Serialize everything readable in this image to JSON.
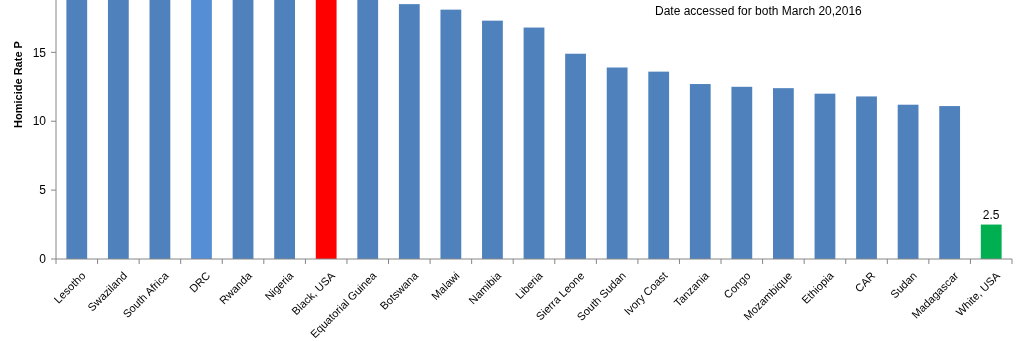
{
  "chart_data": {
    "type": "bar",
    "ylabel": "Homicide Rate P",
    "annotations": [
      "Date accessed for both March 20,2016"
    ],
    "categories": [
      "Lesotho",
      "Swaziland",
      "South Africa",
      "DRC",
      "Rwanda",
      "Nigeria",
      "Black, USA",
      "Equatorial Guinea",
      "Botswana",
      "Malawi",
      "Namibia",
      "Liberia",
      "Sierra Leone",
      "South Sudan",
      "Ivory Coast",
      "Tanzania",
      "Congo",
      "Mozambique",
      "Ethiopia",
      "CAR",
      "Sudan",
      "Madagascar",
      "White, USA"
    ],
    "values": [
      18.8,
      18.8,
      18.8,
      18.8,
      18.8,
      18.8,
      18.8,
      18.8,
      18.5,
      18.1,
      17.3,
      16.8,
      14.9,
      13.9,
      13.6,
      12.7,
      12.5,
      12.4,
      12.0,
      11.8,
      11.2,
      11.1,
      2.5
    ],
    "colors": [
      "#4f81bd",
      "#4f81bd",
      "#4f81bd",
      "#558ed5",
      "#4f81bd",
      "#4f81bd",
      "#ff0000",
      "#4f81bd",
      "#4f81bd",
      "#4f81bd",
      "#4f81bd",
      "#4f81bd",
      "#4f81bd",
      "#4f81bd",
      "#4f81bd",
      "#4f81bd",
      "#4f81bd",
      "#4f81bd",
      "#4f81bd",
      "#4f81bd",
      "#4f81bd",
      "#4f81bd",
      "#00b050"
    ],
    "value_labels": [
      null,
      null,
      null,
      null,
      null,
      null,
      null,
      null,
      null,
      null,
      null,
      null,
      null,
      null,
      null,
      null,
      null,
      null,
      null,
      null,
      null,
      null,
      "2.5"
    ],
    "ylim": [
      0,
      18.8
    ],
    "yticks": [
      0,
      5,
      10,
      15
    ]
  }
}
